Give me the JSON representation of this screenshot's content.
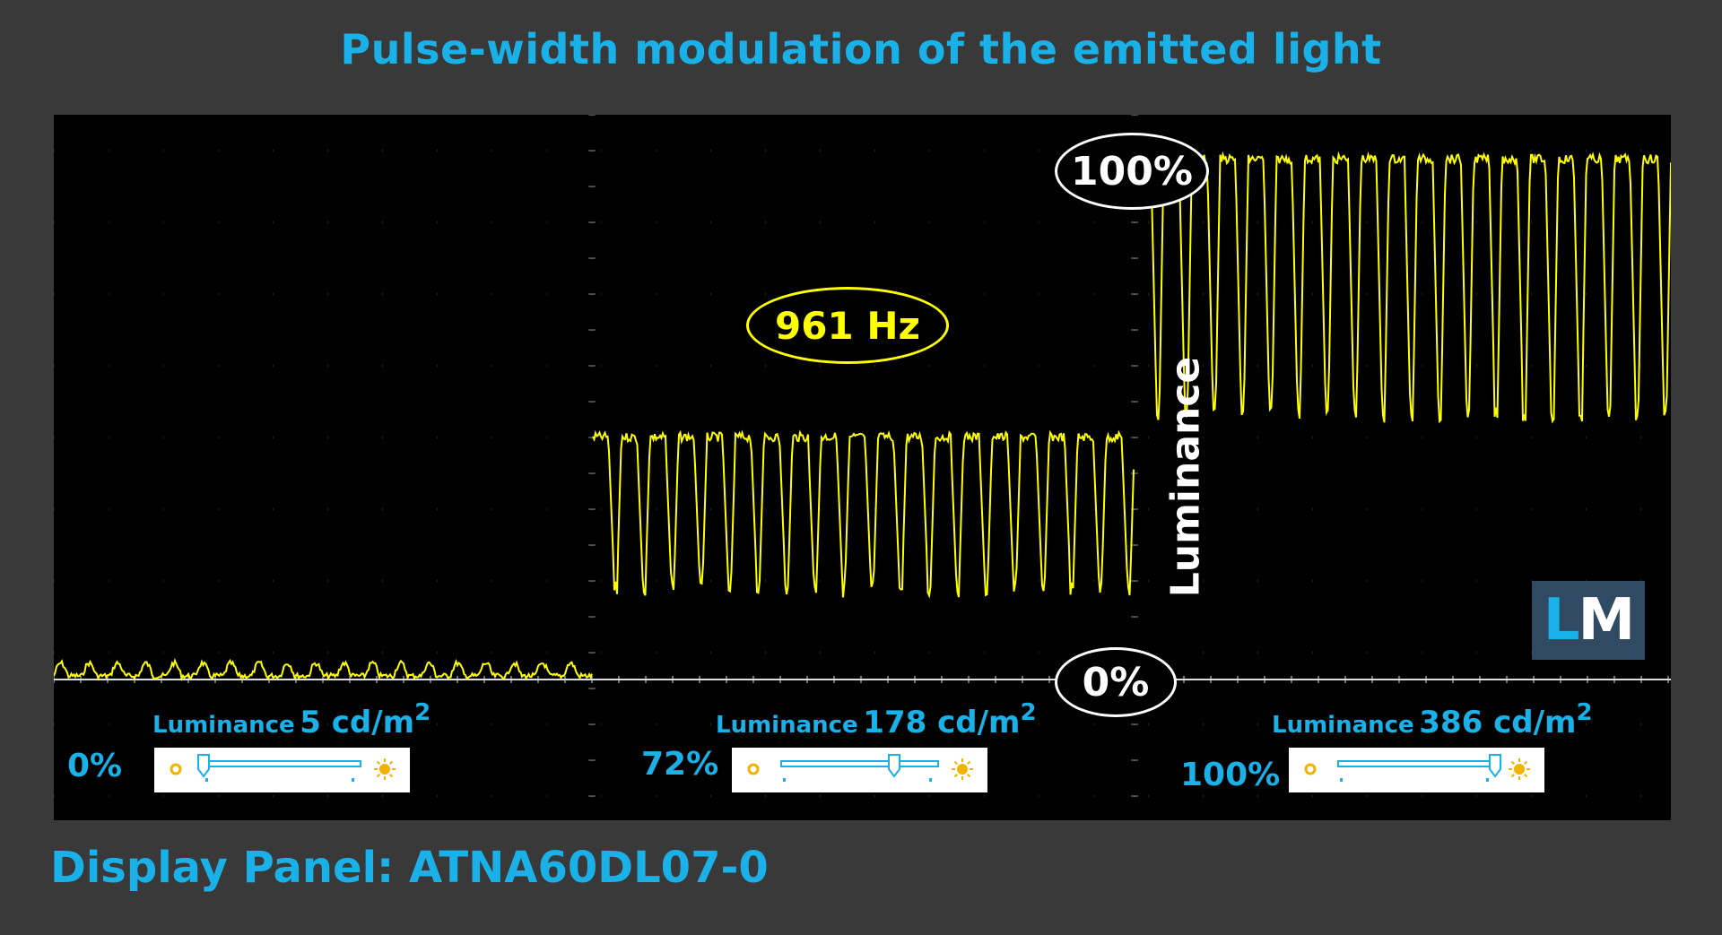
{
  "title": "Pulse-width modulation of the emitted light",
  "footer": "Display Panel: ATNA60DL07-0",
  "logo": {
    "l": "L",
    "m": "M"
  },
  "colors": {
    "trace": "#ffff00",
    "accent": "#1ab0e8",
    "background": "#000000"
  },
  "chart_data": {
    "type": "line",
    "title": "Pulse-width modulation of the emitted light",
    "ylabel": "Luminance",
    "y_markers": {
      "top": "100%",
      "bottom": "0%"
    },
    "frequency_label": "961 Hz",
    "segments": [
      {
        "brightness_setting": "0%",
        "luminance_label": "Luminance",
        "luminance_value": "5 cd/m",
        "luminance_unit_sup": "2",
        "slider_level": 0.0,
        "signal": {
          "high_pct": 3,
          "low_pct": 0,
          "cycles": 19
        }
      },
      {
        "brightness_setting": "72%",
        "luminance_label": "Luminance",
        "luminance_value": "178 cd/m",
        "luminance_unit_sup": "2",
        "slider_level": 0.72,
        "signal": {
          "high_pct": 44,
          "low_pct": 18,
          "cycles": 19
        }
      },
      {
        "brightness_setting": "100%",
        "luminance_label": "Luminance",
        "luminance_value": "386 cd/m",
        "luminance_unit_sup": "2",
        "slider_level": 1.0,
        "signal": {
          "high_pct": 95,
          "low_pct": 50,
          "cycles": 19
        }
      }
    ],
    "grid": true
  }
}
